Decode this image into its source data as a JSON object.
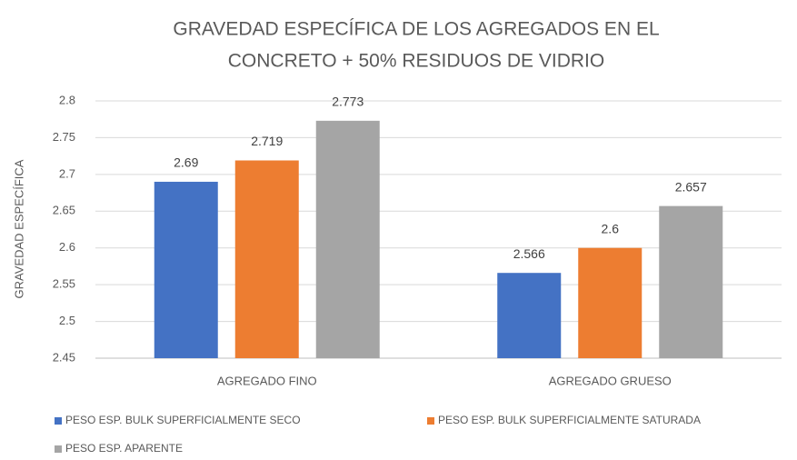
{
  "chart_data": {
    "type": "bar",
    "title": [
      "GRAVEDAD ESPECÍFICA DE LOS AGREGADOS EN EL",
      "CONCRETO + 50% RESIDUOS DE VIDRIO"
    ],
    "y_label": "GRAVEDAD ESPECÍFICA",
    "categories": [
      "AGREGADO FINO",
      "AGREGADO GRUESO"
    ],
    "series": [
      {
        "name": "PESO ESP. BULK SUPERFICIALMENTE SECO",
        "color": "#4472c4",
        "values": [
          2.69,
          2.566
        ]
      },
      {
        "name": "PESO ESP. BULK SUPERFICIALMENTE SATURADA",
        "color": "#ed7d31",
        "values": [
          2.719,
          2.6
        ]
      },
      {
        "name": "PESO ESP. APARENTE",
        "color": "#a5a5a5",
        "values": [
          2.773,
          2.657
        ]
      }
    ],
    "ylim": [
      2.45,
      2.8
    ],
    "yticks": [
      2.45,
      2.5,
      2.55,
      2.6,
      2.65,
      2.7,
      2.75,
      2.8
    ],
    "grid": true,
    "legend": "bottom"
  }
}
